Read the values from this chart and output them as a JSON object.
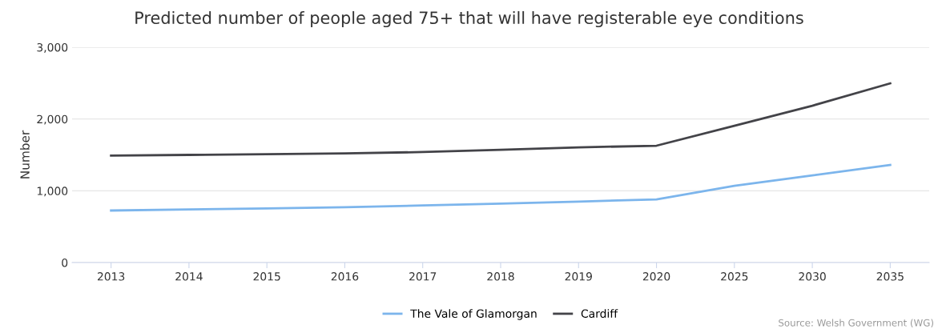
{
  "chart_data": {
    "type": "line",
    "title": "Predicted number of people aged 75+ that will have registerable eye conditions",
    "ylabel": "Number",
    "categories": [
      "2013",
      "2014",
      "2015",
      "2016",
      "2017",
      "2018",
      "2019",
      "2020",
      "2025",
      "2030",
      "2035"
    ],
    "series": [
      {
        "name": "The Vale of Glamorgan",
        "color": "#7cb5ec",
        "values": [
          725,
          740,
          755,
          770,
          795,
          820,
          850,
          880,
          1070,
          1215,
          1360
        ]
      },
      {
        "name": "Cardiff",
        "color": "#434348",
        "values": [
          1490,
          1500,
          1510,
          1520,
          1540,
          1570,
          1605,
          1628,
          1906,
          2185,
          2497
        ]
      }
    ],
    "ylim": [
      0,
      3000
    ],
    "yticks": [
      {
        "value": 0,
        "label": "0"
      },
      {
        "value": 1000,
        "label": "1,000"
      },
      {
        "value": 2000,
        "label": "2,000"
      },
      {
        "value": 3000,
        "label": "3,000"
      }
    ],
    "grid": "y",
    "legend": "bottom",
    "marker": "none",
    "line_style": "solid",
    "annotations": [
      "Source: Welsh Government (WG)"
    ]
  }
}
